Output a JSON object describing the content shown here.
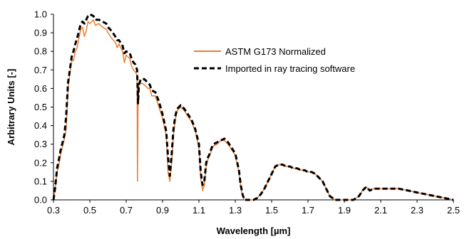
{
  "chart_data": {
    "type": "line",
    "xlabel": "Wavelength [µm]",
    "ylabel": "Arbitrary Units [-]",
    "xlim": [
      0.3,
      2.5
    ],
    "ylim": [
      0.0,
      1.0
    ],
    "x_ticks": [
      "0.3",
      "0.5",
      "0.7",
      "0.9",
      "1.1",
      "1.3",
      "1.5",
      "1.7",
      "1.9",
      "2.1",
      "2.3",
      "2.5"
    ],
    "y_ticks": [
      "0.0",
      "0.1",
      "0.2",
      "0.3",
      "0.4",
      "0.5",
      "0.6",
      "0.7",
      "0.8",
      "0.9",
      "1.0"
    ],
    "grid": false,
    "legend_position": "top-right",
    "series": [
      {
        "name": "ASTM G173 Normalized",
        "color": "#ED7D31",
        "style": "solid",
        "x": [
          0.3,
          0.31,
          0.32,
          0.33,
          0.34,
          0.35,
          0.36,
          0.37,
          0.38,
          0.39,
          0.4,
          0.41,
          0.42,
          0.43,
          0.44,
          0.45,
          0.46,
          0.47,
          0.48,
          0.49,
          0.5,
          0.52,
          0.53,
          0.55,
          0.57,
          0.59,
          0.6,
          0.62,
          0.64,
          0.65,
          0.66,
          0.68,
          0.69,
          0.7,
          0.72,
          0.73,
          0.74,
          0.75,
          0.76,
          0.762,
          0.765,
          0.77,
          0.78,
          0.8,
          0.82,
          0.83,
          0.84,
          0.86,
          0.88,
          0.9,
          0.92,
          0.93,
          0.94,
          0.95,
          0.96,
          0.97,
          0.98,
          1.0,
          1.02,
          1.04,
          1.06,
          1.08,
          1.1,
          1.11,
          1.12,
          1.13,
          1.14,
          1.15,
          1.16,
          1.17,
          1.18,
          1.2,
          1.22,
          1.24,
          1.26,
          1.28,
          1.3,
          1.32,
          1.33,
          1.34,
          1.35,
          1.36,
          1.4,
          1.42,
          1.44,
          1.46,
          1.48,
          1.5,
          1.52,
          1.54,
          1.56,
          1.58,
          1.6,
          1.62,
          1.64,
          1.66,
          1.68,
          1.7,
          1.72,
          1.74,
          1.76,
          1.78,
          1.8,
          1.82,
          1.85,
          1.9,
          1.95,
          1.98,
          2.0,
          2.02,
          2.04,
          2.06,
          2.08,
          2.1,
          2.15,
          2.2,
          2.25,
          2.3,
          2.35,
          2.4,
          2.45,
          2.5
        ],
        "y": [
          0.0,
          0.06,
          0.15,
          0.19,
          0.25,
          0.29,
          0.33,
          0.38,
          0.6,
          0.68,
          0.75,
          0.75,
          0.8,
          0.82,
          0.87,
          0.92,
          0.93,
          0.88,
          0.91,
          0.96,
          0.95,
          0.97,
          0.94,
          0.95,
          0.93,
          0.92,
          0.9,
          0.87,
          0.85,
          0.82,
          0.84,
          0.8,
          0.74,
          0.78,
          0.76,
          0.72,
          0.7,
          0.69,
          0.67,
          0.1,
          0.5,
          0.62,
          0.63,
          0.62,
          0.6,
          0.6,
          0.56,
          0.56,
          0.5,
          0.44,
          0.35,
          0.15,
          0.1,
          0.2,
          0.35,
          0.43,
          0.48,
          0.5,
          0.48,
          0.45,
          0.42,
          0.37,
          0.28,
          0.12,
          0.05,
          0.08,
          0.18,
          0.22,
          0.24,
          0.27,
          0.29,
          0.3,
          0.32,
          0.32,
          0.3,
          0.27,
          0.24,
          0.15,
          0.07,
          0.02,
          0.0,
          0.0,
          0.0,
          0.01,
          0.03,
          0.06,
          0.1,
          0.14,
          0.18,
          0.19,
          0.19,
          0.18,
          0.18,
          0.17,
          0.17,
          0.16,
          0.16,
          0.15,
          0.15,
          0.14,
          0.12,
          0.1,
          0.06,
          0.02,
          0.0,
          0.0,
          0.0,
          0.02,
          0.05,
          0.07,
          0.05,
          0.06,
          0.06,
          0.06,
          0.06,
          0.06,
          0.05,
          0.04,
          0.03,
          0.02,
          0.01,
          0.0
        ]
      },
      {
        "name": "Imported in ray tracing software",
        "color": "#000000",
        "style": "dashed",
        "x": [
          0.3,
          0.31,
          0.32,
          0.33,
          0.34,
          0.35,
          0.36,
          0.37,
          0.38,
          0.39,
          0.4,
          0.41,
          0.42,
          0.43,
          0.44,
          0.45,
          0.46,
          0.47,
          0.48,
          0.49,
          0.5,
          0.52,
          0.53,
          0.55,
          0.57,
          0.59,
          0.6,
          0.62,
          0.64,
          0.65,
          0.66,
          0.68,
          0.69,
          0.7,
          0.72,
          0.73,
          0.74,
          0.75,
          0.76,
          0.765,
          0.77,
          0.78,
          0.8,
          0.82,
          0.83,
          0.84,
          0.86,
          0.88,
          0.9,
          0.92,
          0.93,
          0.94,
          0.95,
          0.96,
          0.97,
          0.98,
          1.0,
          1.02,
          1.04,
          1.06,
          1.08,
          1.1,
          1.11,
          1.12,
          1.13,
          1.14,
          1.15,
          1.16,
          1.17,
          1.18,
          1.2,
          1.22,
          1.24,
          1.26,
          1.28,
          1.3,
          1.32,
          1.33,
          1.34,
          1.35,
          1.36,
          1.4,
          1.42,
          1.44,
          1.46,
          1.48,
          1.5,
          1.52,
          1.54,
          1.56,
          1.58,
          1.6,
          1.62,
          1.64,
          1.66,
          1.68,
          1.7,
          1.72,
          1.74,
          1.76,
          1.78,
          1.8,
          1.82,
          1.85,
          1.9,
          1.95,
          1.98,
          2.0,
          2.02,
          2.04,
          2.06,
          2.08,
          2.1,
          2.15,
          2.2,
          2.25,
          2.3,
          2.35,
          2.4,
          2.45,
          2.5
        ],
        "y": [
          0.0,
          0.07,
          0.17,
          0.22,
          0.27,
          0.31,
          0.35,
          0.45,
          0.63,
          0.7,
          0.77,
          0.8,
          0.84,
          0.87,
          0.91,
          0.95,
          0.96,
          0.95,
          0.97,
          0.99,
          1.0,
          0.99,
          0.97,
          0.97,
          0.96,
          0.95,
          0.93,
          0.91,
          0.88,
          0.86,
          0.86,
          0.83,
          0.79,
          0.8,
          0.79,
          0.76,
          0.74,
          0.73,
          0.7,
          0.52,
          0.62,
          0.65,
          0.65,
          0.63,
          0.62,
          0.59,
          0.58,
          0.53,
          0.46,
          0.37,
          0.23,
          0.13,
          0.24,
          0.38,
          0.45,
          0.49,
          0.51,
          0.49,
          0.46,
          0.43,
          0.38,
          0.3,
          0.15,
          0.08,
          0.1,
          0.2,
          0.23,
          0.25,
          0.28,
          0.3,
          0.31,
          0.32,
          0.33,
          0.31,
          0.28,
          0.25,
          0.16,
          0.08,
          0.03,
          0.0,
          0.0,
          0.0,
          0.01,
          0.03,
          0.06,
          0.1,
          0.14,
          0.18,
          0.19,
          0.19,
          0.18,
          0.18,
          0.17,
          0.17,
          0.16,
          0.16,
          0.15,
          0.15,
          0.14,
          0.12,
          0.1,
          0.06,
          0.02,
          0.0,
          0.0,
          0.0,
          0.02,
          0.05,
          0.07,
          0.05,
          0.06,
          0.06,
          0.06,
          0.06,
          0.06,
          0.05,
          0.04,
          0.03,
          0.02,
          0.01,
          0.0
        ]
      }
    ]
  }
}
